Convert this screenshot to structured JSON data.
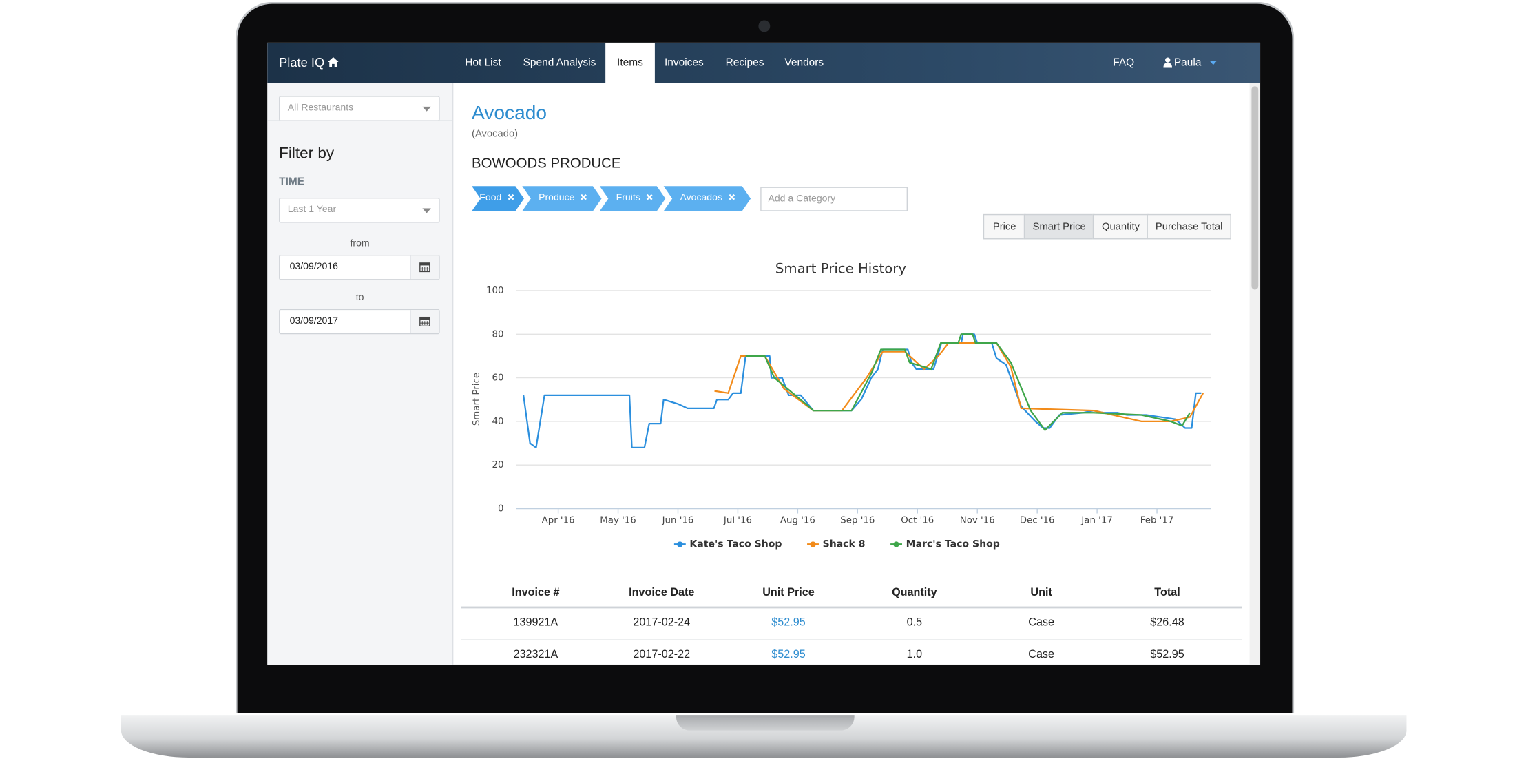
{
  "navbar": {
    "brand": "Plate IQ",
    "links": [
      "Hot List",
      "Spend Analysis",
      "Items",
      "Invoices",
      "Recipes",
      "Vendors"
    ],
    "faq": "FAQ",
    "user": "Paula"
  },
  "sidebar": {
    "restaurant_select": "All Restaurants",
    "filter_title": "Filter by",
    "time_label": "TIME",
    "time_select": "Last 1 Year",
    "from_label": "from",
    "from_date": "03/09/2016",
    "to_label": "to",
    "to_date": "03/09/2017"
  },
  "item": {
    "name": "Avocado",
    "subname": "(Avocado)",
    "vendor": "BOWOODS PRODUCE",
    "categories": [
      "Food",
      "Produce",
      "Fruits",
      "Avocados"
    ],
    "category_placeholder": "Add a Category"
  },
  "view_buttons": [
    "Price",
    "Smart Price",
    "Quantity",
    "Purchase Total"
  ],
  "chart_data": {
    "type": "line",
    "title": "Smart Price History",
    "y_label": "Smart Price",
    "xlim": [
      0.3,
      11.9
    ],
    "xticks": [
      {
        "value": 1,
        "label": "Apr '16"
      },
      {
        "value": 2,
        "label": "May '16"
      },
      {
        "value": 3,
        "label": "Jun '16"
      },
      {
        "value": 4,
        "label": "Jul '16"
      },
      {
        "value": 5,
        "label": "Aug '16"
      },
      {
        "value": 6,
        "label": "Sep '16"
      },
      {
        "value": 7,
        "label": "Oct '16"
      },
      {
        "value": 8,
        "label": "Nov '16"
      },
      {
        "value": 9,
        "label": "Dec '16"
      },
      {
        "value": 10,
        "label": "Jan '17"
      },
      {
        "value": 11,
        "label": "Feb '17"
      }
    ],
    "ylim": [
      0,
      100
    ],
    "yticks": [
      0,
      20,
      40,
      60,
      80,
      100
    ],
    "grid": true,
    "series": [
      {
        "name": "Kate's Taco Shop",
        "color": "#2b8fde",
        "x": [
          0.42,
          0.53,
          0.63,
          0.77,
          2.19,
          2.23,
          2.44,
          2.52,
          2.71,
          2.76,
          3.0,
          3.16,
          3.6,
          3.65,
          3.84,
          3.92,
          4.05,
          4.13,
          4.53,
          4.56,
          4.74,
          4.85,
          5.05,
          5.26,
          5.9,
          6.06,
          6.23,
          6.34,
          6.42,
          6.84,
          6.9,
          6.98,
          7.27,
          7.4,
          7.73,
          7.76,
          7.95,
          8.0,
          8.24,
          8.32,
          8.48,
          8.73,
          8.97,
          9.1,
          9.21,
          9.37,
          9.77,
          9.94,
          10.1,
          10.34,
          10.5,
          10.82,
          11.06,
          11.31,
          11.47,
          11.58,
          11.65,
          11.74
        ],
        "values": [
          52,
          30,
          28,
          52,
          52,
          28,
          28,
          39,
          39,
          50,
          48,
          46,
          46,
          50,
          50,
          53,
          53,
          70,
          70,
          60,
          60,
          52,
          52,
          45,
          45,
          50,
          60,
          64,
          73,
          73,
          67,
          64,
          64,
          76,
          76,
          80,
          80,
          76,
          76,
          69,
          66,
          47,
          40,
          37,
          37,
          43,
          44,
          45,
          44,
          44,
          43,
          43,
          42,
          41,
          37,
          37,
          53,
          53
        ]
      },
      {
        "name": "Shack 8",
        "color": "#f28b1a",
        "x": [
          3.61,
          3.84,
          4.05,
          4.45,
          4.77,
          5.26,
          5.74,
          6.15,
          6.42,
          6.79,
          7.11,
          7.35,
          7.52,
          8.32,
          8.56,
          8.73,
          9.94,
          10.74,
          11.23,
          11.55,
          11.77
        ],
        "values": [
          54,
          53,
          70,
          70,
          55,
          45,
          45,
          60,
          72,
          72,
          64,
          70,
          76,
          76,
          65,
          46,
          45,
          40,
          40,
          42,
          53
        ]
      },
      {
        "name": "Marc's Taco Shop",
        "color": "#3fa64a",
        "x": [
          4.13,
          4.45,
          4.61,
          5.18,
          5.26,
          5.9,
          6.23,
          6.39,
          6.79,
          6.87,
          7.23,
          7.39,
          7.68,
          7.73,
          7.92,
          7.97,
          8.32,
          8.56,
          8.89,
          9.13,
          9.42,
          9.94,
          10.74,
          11.23,
          11.42,
          11.55
        ],
        "values": [
          70,
          70,
          60,
          47,
          45,
          45,
          62,
          73,
          73,
          67,
          64,
          76,
          76,
          80,
          80,
          76,
          76,
          67,
          45,
          36,
          44,
          44,
          43,
          40,
          38,
          44
        ]
      }
    ]
  },
  "table": {
    "headers": [
      "Invoice #",
      "Invoice Date",
      "Unit Price",
      "Quantity",
      "Unit",
      "Total"
    ],
    "rows": [
      [
        "139921A",
        "2017-02-24",
        "$52.95",
        "0.5",
        "Case",
        "$26.48"
      ],
      [
        "232321A",
        "2017-02-22",
        "$52.95",
        "1.0",
        "Case",
        "$52.95"
      ]
    ]
  }
}
